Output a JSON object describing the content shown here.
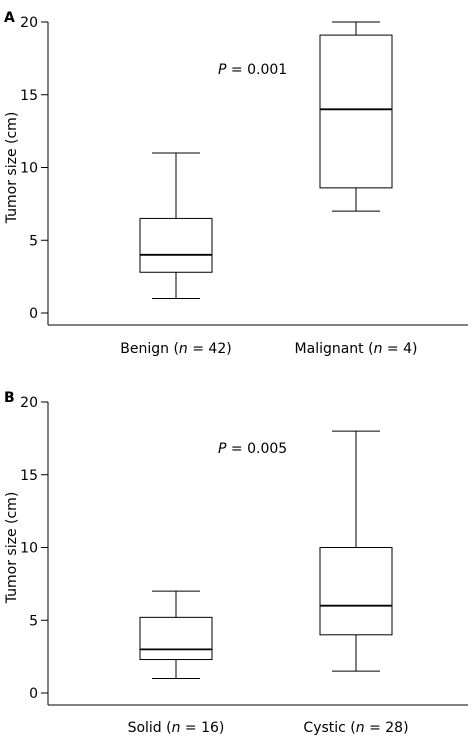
{
  "chart_data": [
    {
      "type": "box",
      "panel_label": "A",
      "ylabel": "Tumor size (cm)",
      "ylim": [
        0,
        20
      ],
      "yticks": [
        0,
        5,
        10,
        15,
        20
      ],
      "annotation": {
        "italic": "P",
        "rest": " = 0.001"
      },
      "categories": [
        {
          "label_pre": "Benign (",
          "label_italic": "n",
          "label_post": " = 42)",
          "min": 1,
          "q1": 2.8,
          "median": 4,
          "q3": 6.5,
          "max": 11
        },
        {
          "label_pre": "Malignant (",
          "label_italic": "n",
          "label_post": " = 4)",
          "min": 7,
          "q1": 8.6,
          "median": 14,
          "q3": 19.1,
          "max": 20
        }
      ]
    },
    {
      "type": "box",
      "panel_label": "B",
      "ylabel": "Tumor size (cm)",
      "ylim": [
        0,
        20
      ],
      "yticks": [
        0,
        5,
        10,
        15,
        20
      ],
      "annotation": {
        "italic": "P",
        "rest": " = 0.005"
      },
      "categories": [
        {
          "label_pre": "Solid (",
          "label_italic": "n",
          "label_post": " = 16)",
          "min": 1,
          "q1": 2.3,
          "median": 3,
          "q3": 5.2,
          "max": 7
        },
        {
          "label_pre": "Cystic (",
          "label_italic": "n",
          "label_post": " = 28)",
          "min": 1.5,
          "q1": 4,
          "median": 6,
          "q3": 10,
          "max": 18
        }
      ]
    }
  ]
}
